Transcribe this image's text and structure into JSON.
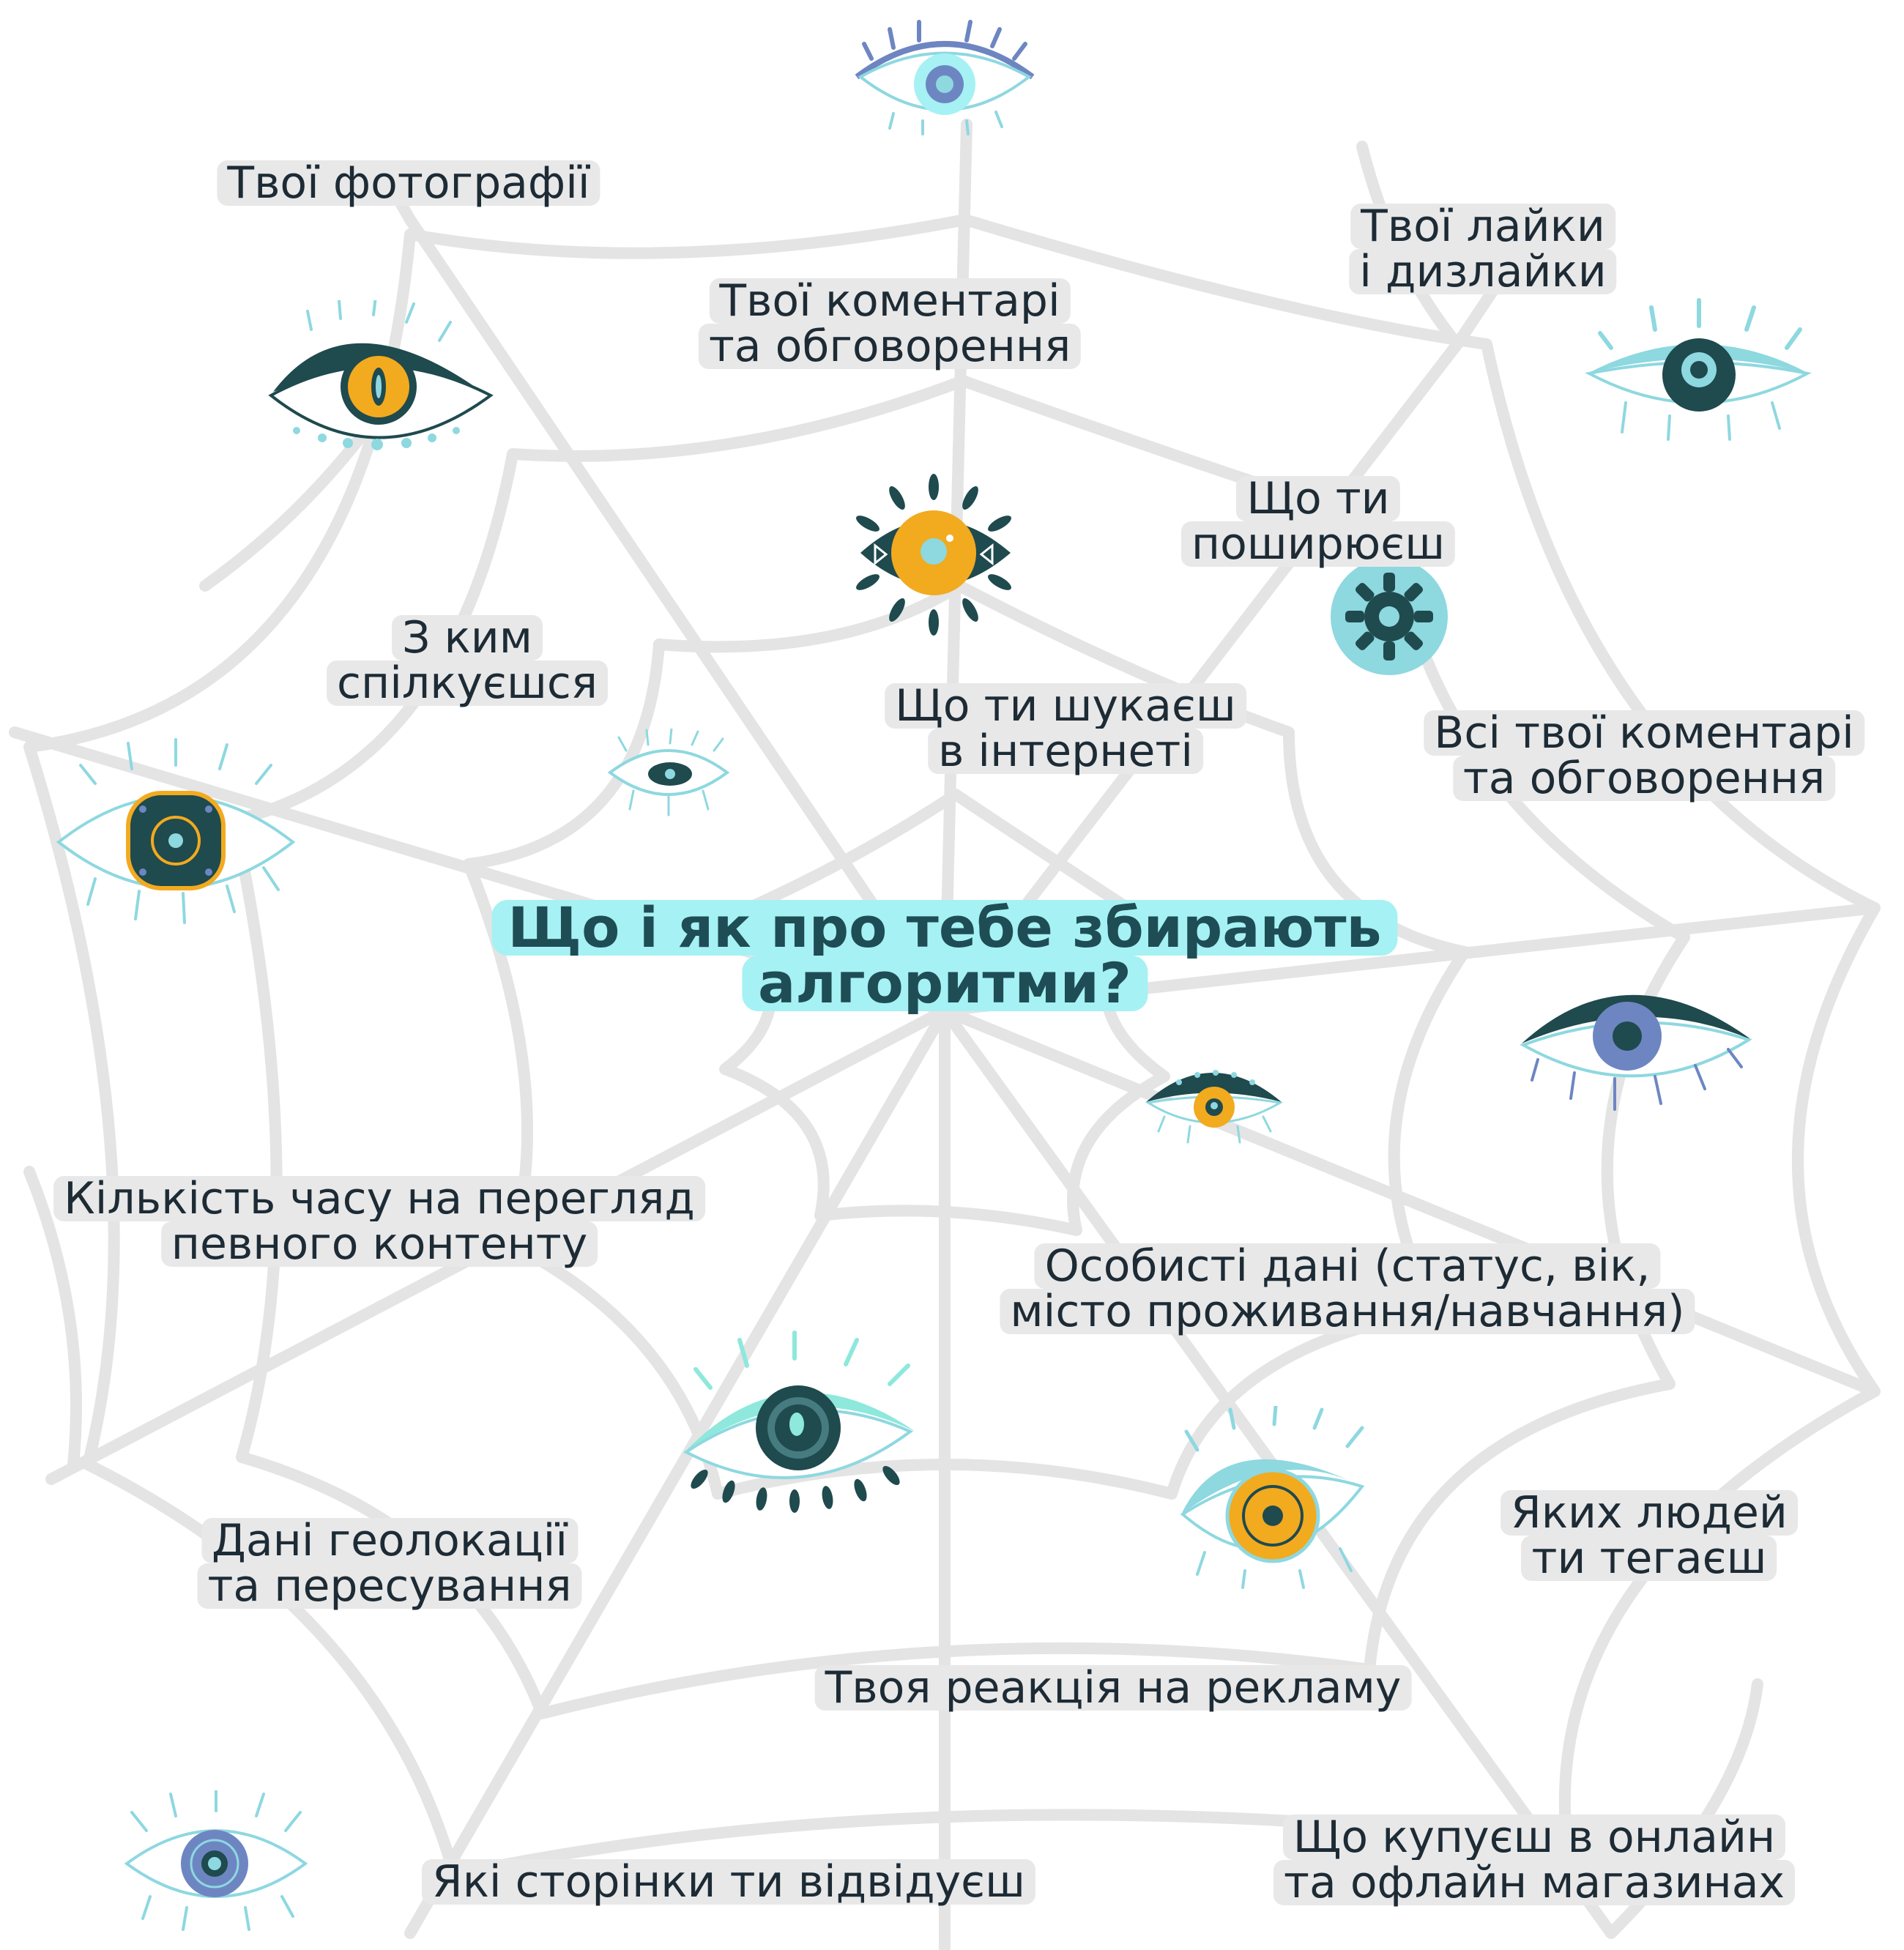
{
  "title": {
    "line1": "Що і як про тебе збирають",
    "line2": "алгоритми?"
  },
  "labels": {
    "photos": [
      "Твої фотографії"
    ],
    "comments_top": [
      "Твої коментарі",
      "та обговорення"
    ],
    "likes": [
      "Твої лайки",
      "і дизлайки"
    ],
    "share": [
      "Що ти",
      "поширюєш"
    ],
    "whom": [
      "З ким",
      "спілкуєшся"
    ],
    "search": [
      "Що ти шукаєш",
      "в інтернеті"
    ],
    "all_comments": [
      "Всі твої коментарі",
      "та обговорення"
    ],
    "time": [
      "Кількість часу на перегляд",
      "певного контенту"
    ],
    "personal": [
      "Особисті дані (статус, вік,",
      "місто проживання/навчання)"
    ],
    "geo": [
      "Дані геолокації",
      "та пересування"
    ],
    "tag": [
      "Яких людей",
      "ти тегаєш"
    ],
    "ads": [
      "Твоя реакція на рекламу"
    ],
    "shops": [
      "Що купуєш в онлайн",
      "та офлайн магазинах"
    ],
    "pages": [
      "Які сторінки ти відвідуєш"
    ]
  },
  "colors": {
    "web": "#e4e4e5",
    "text": "#1d2b35",
    "title_text": "#1f4d55",
    "title_highlight": "#a6f1f3",
    "label_highlight": "#e8e8e9",
    "dark_teal": "#1f4a4e",
    "light_cyan": "#8ed8e0",
    "orange": "#f2aa1f",
    "periwinkle": "#6d86c2"
  },
  "icons": [
    "eye-icon-top-flower",
    "eye-icon-orange-cat",
    "eye-icon-cyan-right",
    "eye-icon-sun-center",
    "gear-icon",
    "eye-icon-small",
    "eye-icon-square-iris",
    "eye-icon-periwinkle-right",
    "eye-icon-dotted-lid",
    "eye-icon-mint-bottom",
    "eye-icon-orange-bottom",
    "eye-icon-periwinkle-bottom-left"
  ]
}
